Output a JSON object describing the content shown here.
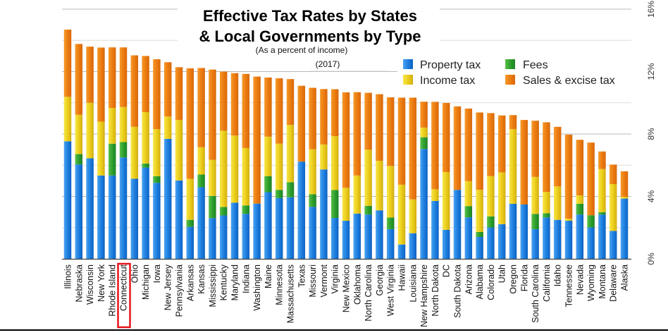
{
  "chart_data": {
    "type": "bar",
    "stacked": true,
    "title": "Effective Tax Rates by States & Local Governments by Type",
    "title_lines": [
      "Effective Tax Rates by States",
      "& Local Governments by Type"
    ],
    "subtitle": "(As a percent of income)",
    "year_label": "(2017)",
    "xlabel": "",
    "ylabel": "",
    "ylim": [
      0,
      16
    ],
    "y_ticks": [
      "0%",
      "4%",
      "8%",
      "12%",
      "16%"
    ],
    "y_axis_side": "right",
    "grid": true,
    "legend_position": "top-right",
    "highlighted_category": "Connecticut",
    "highlight_color": "#e8141b",
    "categories": [
      "Illinois",
      "Nebraska",
      "Wisconsin",
      "New York",
      "Rhode Island",
      "Connecticut",
      "Ohio",
      "Michigan",
      "Iowa",
      "New Jersey",
      "Pennsylvania",
      "Arkansas",
      "Kansas",
      "Mississippi",
      "Kentucky",
      "Maryland",
      "Indiana",
      "Washington",
      "Maine",
      "Minnesota",
      "Massachusetts",
      "Texas",
      "Missouri",
      "Vermont",
      "Virginia",
      "New Mexico",
      "Oklahoma",
      "North Carolina",
      "Georgia",
      "West Virginia",
      "Hawaii",
      "Louisiana",
      "New Hampshire",
      "North Dakota",
      "DC",
      "South Dakota",
      "Arizona",
      "Alabama",
      "Colorado",
      "Utah",
      "Oregon",
      "Florida",
      "South Carolina",
      "California",
      "Idaho",
      "Tennessee",
      "Nevada",
      "Wyoming",
      "Montana",
      "Delaware",
      "Alaska"
    ],
    "series": [
      {
        "name": "Property tax",
        "color": "#1f80e0",
        "values": [
          7.53,
          6.05,
          6.44,
          5.34,
          5.34,
          6.5,
          5.13,
          5.85,
          4.87,
          7.69,
          5.02,
          2.05,
          4.59,
          2.61,
          2.78,
          3.6,
          2.88,
          3.54,
          4.27,
          3.89,
          3.94,
          6.23,
          3.33,
          5.73,
          2.62,
          2.44,
          2.9,
          2.84,
          3.11,
          1.9,
          0.92,
          1.64,
          7.04,
          3.71,
          1.86,
          4.42,
          2.66,
          1.4,
          2.01,
          2.22,
          3.53,
          3.48,
          1.9,
          2.65,
          2.5,
          2.44,
          2.84,
          2.01,
          2.84,
          1.79,
          3.86
        ]
      },
      {
        "name": "Fees",
        "color": "#2ea02e",
        "values": [
          0,
          0.66,
          0,
          0,
          2.04,
          0.98,
          0,
          0.26,
          0.42,
          0,
          0,
          0.45,
          0.81,
          1.42,
          0.54,
          0,
          0.54,
          0,
          1.03,
          0.53,
          0.97,
          0,
          0.81,
          0,
          1.79,
          0,
          0,
          0.56,
          0,
          0.75,
          0,
          0,
          0.75,
          0,
          0,
          0,
          0.72,
          0.32,
          0.71,
          0,
          0,
          0,
          0.98,
          0.27,
          0,
          0,
          0.69,
          0.78,
          0.15,
          0,
          0
        ]
      },
      {
        "name": "Income tax",
        "color": "#eccf1c",
        "values": [
          2.85,
          2.52,
          3.56,
          3.45,
          2.29,
          2.25,
          3.33,
          3.29,
          3.02,
          1.43,
          3.88,
          2.62,
          1.75,
          2.31,
          4.89,
          4.3,
          3.68,
          0,
          2.53,
          2.96,
          3.67,
          0,
          2.88,
          1.6,
          3.45,
          2.11,
          2.44,
          3.59,
          3.17,
          3.3,
          3.83,
          2.17,
          0.62,
          0.75,
          3.7,
          0,
          1.6,
          2.7,
          2.58,
          3.32,
          4.78,
          0,
          2.37,
          1.37,
          2.14,
          0.14,
          0.54,
          0,
          2.76,
          3.0,
          0.12
        ]
      },
      {
        "name": "Sales & excise tax",
        "color": "#ec7c10",
        "values": [
          4.31,
          4.54,
          3.6,
          4.75,
          3.88,
          3.82,
          4.58,
          3.6,
          4.48,
          3.48,
          3.38,
          7.09,
          5.08,
          5.79,
          3.79,
          4.0,
          4.75,
          8.14,
          3.79,
          4.19,
          2.94,
          4.86,
          3.94,
          3.55,
          3.01,
          6.12,
          5.34,
          3.65,
          4.27,
          4.4,
          5.58,
          6.52,
          1.66,
          5.6,
          4.43,
          5.35,
          4.65,
          4.96,
          4.04,
          3.65,
          0.9,
          5.42,
          3.6,
          4.46,
          3.82,
          5.38,
          3.56,
          4.66,
          1.13,
          1.25,
          1.63
        ]
      }
    ],
    "legend": [
      {
        "label": "Property tax",
        "color": "#1f80e0"
      },
      {
        "label": "Income tax",
        "color": "#eccf1c"
      },
      {
        "label": "Fees",
        "color": "#2ea02e"
      },
      {
        "label": "Sales & excise tax",
        "color": "#ec7c10"
      }
    ]
  }
}
